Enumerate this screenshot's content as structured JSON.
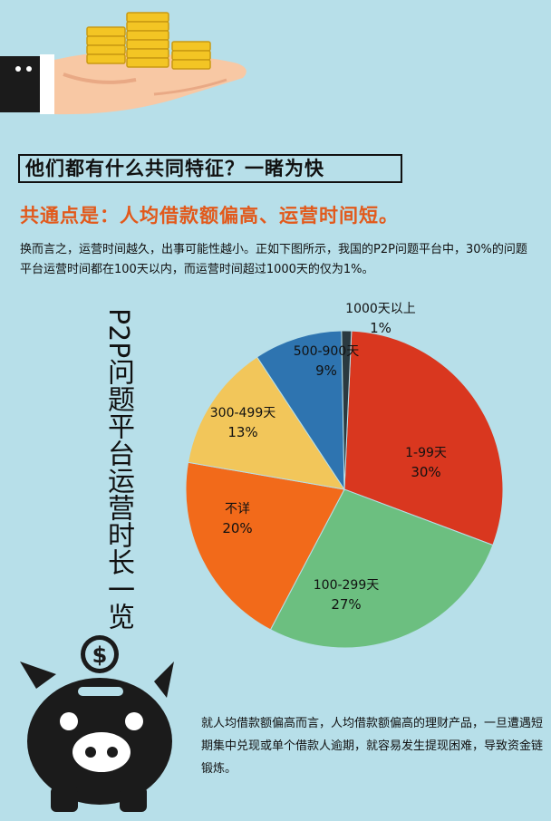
{
  "headline": "他们都有什么共同特征？一睹为快",
  "subhead": "共通点是：人均借款额偏高、运营时间短。",
  "intro": "换而言之，运营时间越久，出事可能性越小。正如下图所示，我国的P2P问题平台中，30%的问题平台运营时间都在100天以内，而运营时间超过1000天的仅为1%。",
  "chart_title": "P2P问题平台运营时长一览",
  "chart_data": {
    "type": "pie",
    "title": "P2P问题平台运营时长一览",
    "unit": "%",
    "slices": [
      {
        "label": "1-99天",
        "value": 30,
        "color": "#d9371f"
      },
      {
        "label": "100-299天",
        "value": 27,
        "color": "#6cbf80"
      },
      {
        "label": "不详",
        "value": 20,
        "color": "#f26a1a"
      },
      {
        "label": "300-499天",
        "value": 13,
        "color": "#f2c65a"
      },
      {
        "label": "500-900天",
        "value": 9,
        "color": "#2e74b0"
      },
      {
        "label": "1000天以上",
        "value": 1,
        "color": "#2b3a40"
      }
    ]
  },
  "bottom_note": "就人均借款额偏高而言，人均借款额偏高的理财产品，一旦遭遇短期集中兑现或单个借款人逾期，就容易发生提现困难，导致资金链锻炼。",
  "icons": {
    "hand": "hand-holding-coins-icon",
    "piggy": "piggy-bank-icon",
    "dollar": "dollar-coin-icon"
  },
  "colors": {
    "background": "#b7dfe9",
    "accent": "#e2591b",
    "coin": "#f3c524",
    "skin": "#f8c8a4"
  }
}
